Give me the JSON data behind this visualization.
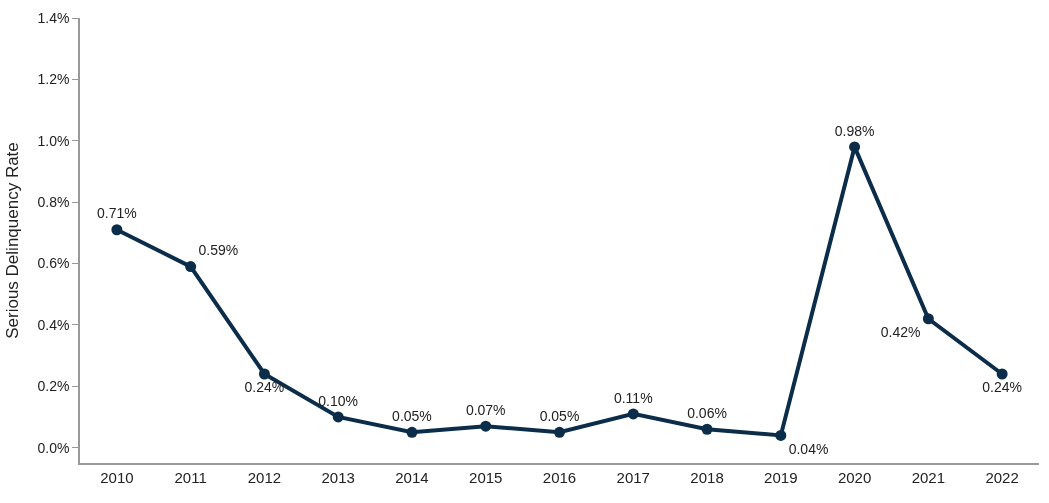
{
  "chart_data": {
    "type": "line",
    "ylabel": "Serious Delinquency Rate",
    "categories": [
      "2010",
      "2011",
      "2012",
      "2013",
      "2014",
      "2015",
      "2016",
      "2017",
      "2018",
      "2019",
      "2020",
      "2021",
      "2022"
    ],
    "series": [
      {
        "color": "#0b2d4a",
        "values": [
          0.71,
          0.59,
          0.24,
          0.1,
          0.05,
          0.07,
          0.05,
          0.11,
          0.06,
          0.04,
          0.98,
          0.42,
          0.24
        ],
        "value_labels": [
          "0.71%",
          "0.59%",
          "0.24%",
          "0.10%",
          "0.05%",
          "0.07%",
          "0.05%",
          "0.11%",
          "0.06%",
          "0.04%",
          "0.98%",
          "0.42%",
          "0.24%"
        ]
      }
    ],
    "ylim": [
      -0.05,
      1.4
    ],
    "yticks": [
      {
        "value": 0,
        "label": "0.0%"
      },
      {
        "value": 0.2,
        "label": "0.2%"
      },
      {
        "value": 0.4,
        "label": "0.4%"
      },
      {
        "value": 0.6,
        "label": "0.6%"
      },
      {
        "value": 0.8,
        "label": "0.8%"
      },
      {
        "value": 1.0,
        "label": "1.0%"
      },
      {
        "value": 1.2,
        "label": "1.2%"
      },
      {
        "value": 1.4,
        "label": "1.4%"
      }
    ],
    "legend": false,
    "marker": "circle",
    "line_style": "solid"
  }
}
